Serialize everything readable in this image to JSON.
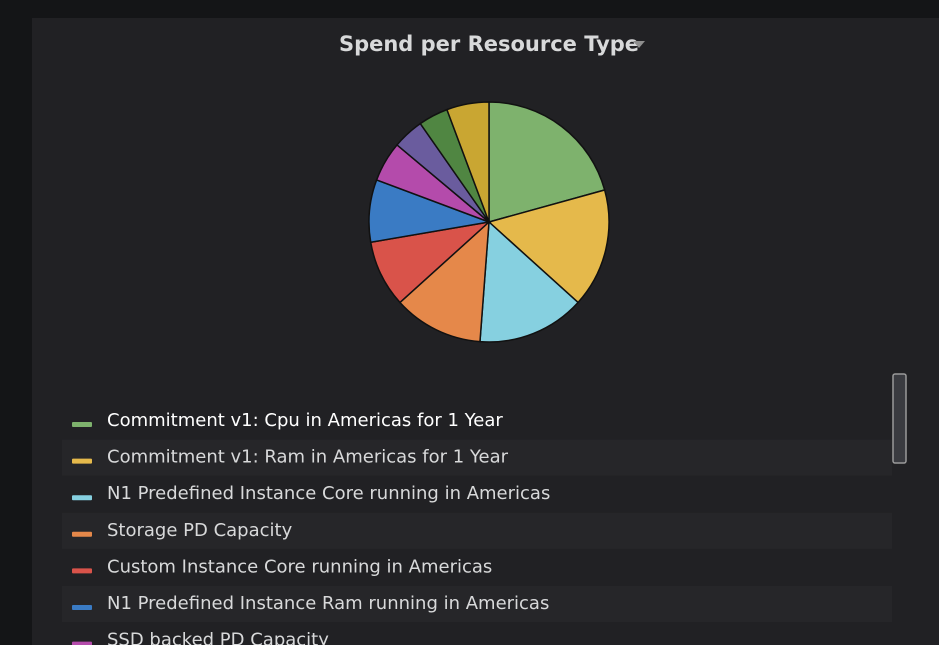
{
  "chart_data": {
    "type": "pie",
    "title": "Spend per Resource Type",
    "categories": [
      "Commitment v1: Cpu in Americas for 1 Year",
      "Commitment v1: Ram in Americas for 1 Year",
      "N1 Predefined Instance Core running in Americas",
      "Storage PD Capacity",
      "Custom Instance Core running in Americas",
      "N1 Predefined Instance Ram running in Americas",
      "SSD backed PD Capacity",
      null,
      null,
      null
    ],
    "values": [
      20.7,
      16,
      14.5,
      12.1,
      9,
      8.4,
      5.4,
      4.2,
      4,
      5.7
    ],
    "colors": [
      "#7eb26d",
      "#e5b94b",
      "#86d0e0",
      "#e5884a",
      "#d9534a",
      "#3a7bc4",
      "#b44bab",
      "#6a5c9e",
      "#508642",
      "#c9a632"
    ]
  }
}
